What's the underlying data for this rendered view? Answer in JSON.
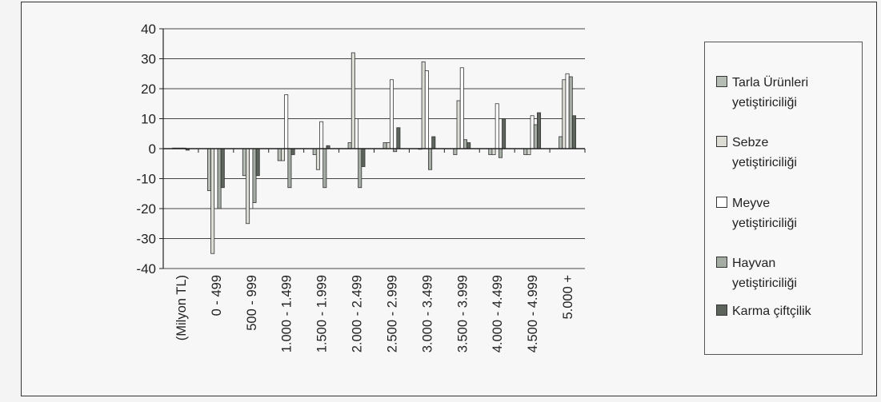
{
  "chart_data": {
    "type": "bar",
    "categories": [
      "(Milyon TL)",
      "0  -  499",
      "500  -  999",
      "1.000 - 1.499",
      "1.500 - 1.999",
      "2.000 - 2.499",
      "2.500 - 2.999",
      "3.000 - 3.499",
      "3.500 - 3.999",
      "4.000 - 4.499",
      "4.500 - 4.999",
      "5.000 +"
    ],
    "series": [
      {
        "name": "Tarla Ürünleri yetiştiriciliği",
        "color": "#b4bcb4",
        "values": [
          0.2,
          -14,
          -9,
          -4,
          -2,
          2,
          2,
          0,
          -2,
          -2,
          -2,
          4
        ]
      },
      {
        "name": "Sebze yetiştiriciliği",
        "color": "#dcdcd4",
        "values": [
          0.2,
          -35,
          -25,
          -4,
          -7,
          32,
          2,
          29,
          16,
          -2,
          -2,
          23
        ]
      },
      {
        "name": "Meyve yetiştiriciliği",
        "color": "#ffffff",
        "values": [
          0.2,
          -20,
          -20,
          18,
          9,
          10,
          23,
          26,
          27,
          15,
          11,
          25
        ]
      },
      {
        "name": "Hayvan yetiştiriciliği",
        "color": "#a4aca4",
        "values": [
          0.2,
          -20,
          -18,
          -13,
          -13,
          -13,
          -1,
          -7,
          3,
          -3,
          8,
          24
        ]
      },
      {
        "name": "Karma çiftçilik",
        "color": "#5c645c",
        "values": [
          -0.5,
          -13,
          -9,
          -2,
          1,
          -6,
          7,
          4,
          2,
          10,
          12,
          11
        ]
      }
    ],
    "ylim": [
      -40,
      40
    ],
    "yticks": [
      40,
      30,
      20,
      10,
      0,
      -10,
      -20,
      -30,
      -40
    ],
    "grid": true,
    "legend_position": "right"
  },
  "legend": {
    "entries": [
      {
        "line1": "Tarla Ürünleri",
        "line2": "yetiştiriciliği",
        "color": "#b4bcb4"
      },
      {
        "line1": "Sebze",
        "line2": "yetiştiriciliği",
        "color": "#dcdcd4"
      },
      {
        "line1": "Meyve",
        "line2": "yetiştiriciliği",
        "color": "#ffffff"
      },
      {
        "line1": "Hayvan",
        "line2": "yetiştiriciliği",
        "color": "#a4aca4"
      },
      {
        "line1": "Karma çiftçilik",
        "line2": "",
        "color": "#5c645c"
      }
    ]
  }
}
